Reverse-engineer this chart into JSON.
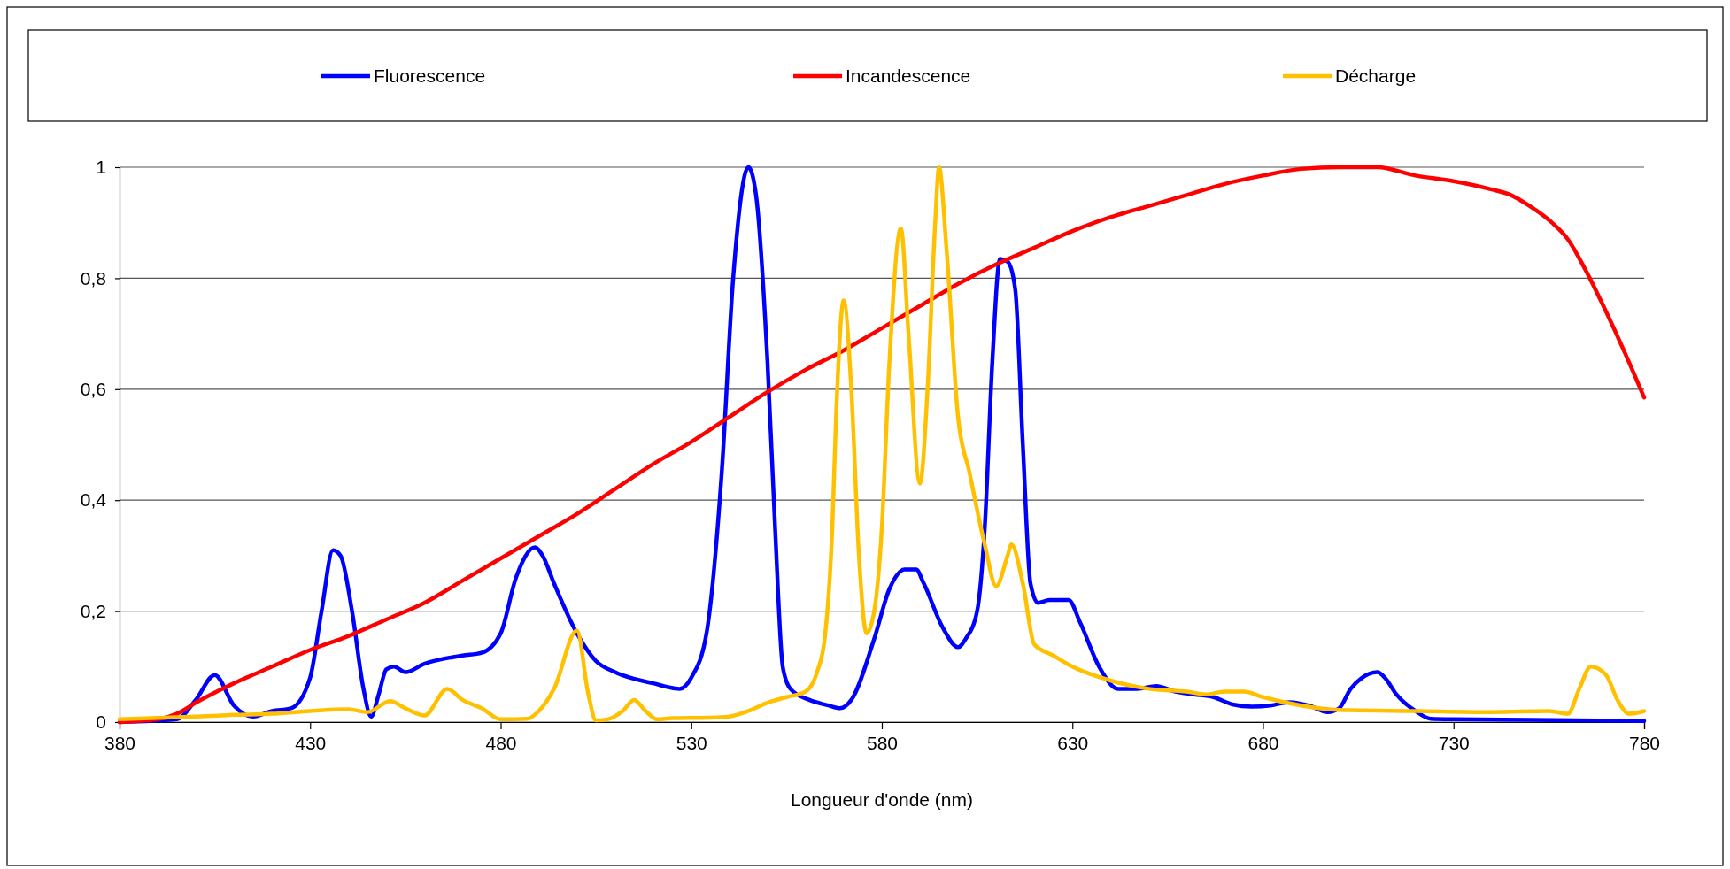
{
  "chart_data": {
    "type": "line",
    "xlabel": "Longueur d'onde (nm)",
    "xlim": [
      380,
      780
    ],
    "xticks": [
      380,
      430,
      480,
      530,
      580,
      630,
      680,
      730,
      780
    ],
    "ylim": [
      0,
      1
    ],
    "yticks": [
      0,
      {
        "value": 0.2,
        "label": "0,2"
      },
      {
        "value": 0.4,
        "label": "0,4"
      },
      {
        "value": 0.6,
        "label": "0,6"
      },
      {
        "value": 0.8,
        "label": "0,8"
      },
      1
    ],
    "grid": "y",
    "legend": "top",
    "line_style": "solid",
    "marker": "none",
    "series": [
      {
        "name": "Fluorescence",
        "color": "#0000ff",
        "x": [
          380,
          395,
          400,
          405,
          410,
          415,
          420,
          425,
          430,
          433,
          436,
          438,
          441,
          444,
          446,
          448,
          450,
          452,
          455,
          460,
          470,
          475,
          480,
          484,
          489,
          491,
          494,
          500,
          505,
          510,
          520,
          527,
          530,
          534,
          538,
          541,
          545,
          547,
          550,
          552,
          554,
          556,
          561,
          566,
          569,
          572,
          578,
          582,
          586,
          589,
          591,
          596,
          600,
          602,
          605,
          607,
          609,
          611,
          613,
          615,
          617,
          619,
          621,
          624,
          629,
          632,
          637,
          642,
          647,
          652,
          657,
          662,
          667,
          672,
          677,
          682,
          687,
          692,
          697,
          700,
          703,
          706,
          710,
          712,
          715,
          720,
          724,
          730,
          750,
          780
        ],
        "values": [
          0,
          0.005,
          0.04,
          0.085,
          0.03,
          0.01,
          0.02,
          0.025,
          0.08,
          0.2,
          0.31,
          0.3,
          0.2,
          0.06,
          0.01,
          0.05,
          0.095,
          0.1,
          0.09,
          0.105,
          0.12,
          0.125,
          0.16,
          0.26,
          0.315,
          0.3,
          0.25,
          0.16,
          0.11,
          0.09,
          0.07,
          0.06,
          0.08,
          0.16,
          0.45,
          0.8,
          1,
          0.95,
          0.65,
          0.35,
          0.1,
          0.06,
          0.04,
          0.03,
          0.025,
          0.04,
          0.15,
          0.24,
          0.275,
          0.275,
          0.25,
          0.17,
          0.135,
          0.15,
          0.2,
          0.35,
          0.65,
          0.835,
          0.83,
          0.78,
          0.5,
          0.25,
          0.215,
          0.22,
          0.22,
          0.18,
          0.1,
          0.06,
          0.06,
          0.065,
          0.055,
          0.05,
          0.045,
          0.032,
          0.028,
          0.03,
          0.036,
          0.03,
          0.018,
          0.025,
          0.06,
          0.08,
          0.09,
          0.08,
          0.05,
          0.02,
          0.006,
          0.005,
          0.004,
          0.002
        ]
      },
      {
        "name": "Incandescence",
        "color": "#ff0000",
        "x": [
          380,
          390,
          395,
          400,
          410,
          420,
          430,
          440,
          450,
          460,
          470,
          480,
          490,
          500,
          510,
          520,
          530,
          540,
          550,
          560,
          570,
          580,
          590,
          600,
          610,
          620,
          630,
          640,
          650,
          660,
          670,
          680,
          690,
          700,
          710,
          720,
          730,
          740,
          745,
          750,
          755,
          760,
          765,
          770,
          775,
          780
        ],
        "values": [
          0,
          0.005,
          0.015,
          0.035,
          0.07,
          0.1,
          0.13,
          0.155,
          0.185,
          0.215,
          0.255,
          0.295,
          0.335,
          0.375,
          0.42,
          0.465,
          0.505,
          0.55,
          0.595,
          0.635,
          0.67,
          0.71,
          0.75,
          0.79,
          0.825,
          0.855,
          0.885,
          0.91,
          0.93,
          0.95,
          0.97,
          0.985,
          0.997,
          1,
          1,
          0.985,
          0.975,
          0.96,
          0.95,
          0.93,
          0.905,
          0.87,
          0.81,
          0.74,
          0.665,
          0.585
        ]
      },
      {
        "name": "Décharge",
        "color": "#ffc000",
        "x": [
          380,
          400,
          410,
          420,
          430,
          440,
          445,
          451,
          455,
          460,
          466,
          470,
          475,
          480,
          487,
          490,
          494,
          500,
          503,
          505,
          508,
          512,
          515,
          518,
          521,
          525,
          535,
          540,
          545,
          550,
          555,
          560,
          563,
          565,
          567,
          568,
          570,
          572,
          574,
          576,
          578,
          580,
          582,
          585,
          587,
          590,
          592,
          594,
          595,
          597,
          600,
          603,
          607,
          610,
          613,
          614,
          617,
          620,
          625,
          630,
          640,
          650,
          660,
          665,
          670,
          675,
          680,
          690,
          700,
          720,
          740,
          755,
          760,
          763,
          766,
          770,
          773,
          776,
          780
        ],
        "values": [
          0.005,
          0.01,
          0.013,
          0.015,
          0.02,
          0.023,
          0.018,
          0.038,
          0.025,
          0.012,
          0.06,
          0.04,
          0.025,
          0.005,
          0.006,
          0.02,
          0.06,
          0.165,
          0.05,
          0.003,
          0.005,
          0.02,
          0.04,
          0.02,
          0.005,
          0.007,
          0.008,
          0.01,
          0.02,
          0.035,
          0.045,
          0.055,
          0.09,
          0.15,
          0.35,
          0.55,
          0.76,
          0.6,
          0.3,
          0.16,
          0.2,
          0.35,
          0.65,
          0.89,
          0.7,
          0.43,
          0.6,
          0.9,
          1,
          0.85,
          0.55,
          0.45,
          0.32,
          0.245,
          0.3,
          0.32,
          0.25,
          0.14,
          0.12,
          0.1,
          0.075,
          0.06,
          0.055,
          0.05,
          0.055,
          0.055,
          0.045,
          0.03,
          0.022,
          0.02,
          0.018,
          0.02,
          0.015,
          0.06,
          0.1,
          0.085,
          0.04,
          0.015,
          0.02
        ]
      }
    ]
  }
}
